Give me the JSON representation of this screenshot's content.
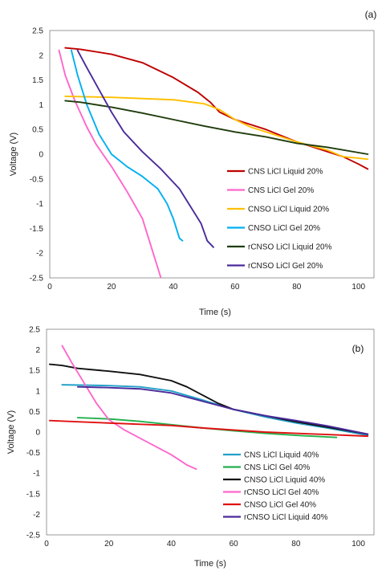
{
  "chart_data": [
    {
      "type": "line",
      "panel_label": "(a)",
      "xlabel": "Time (s)",
      "ylabel": "Voltage (V)",
      "xlim": [
        0,
        105
      ],
      "ylim": [
        -2.5,
        2.5
      ],
      "x_ticks": [
        "0",
        "20",
        "40",
        "60",
        "80",
        "100"
      ],
      "y_ticks": [
        "2.5",
        "2",
        "1.5",
        "1",
        "0.5",
        "0",
        "-0.5",
        "-1",
        "-1.5",
        "-2",
        "-2.5"
      ],
      "grid": false,
      "legend_position": "bottom-right",
      "series": [
        {
          "name": "CNS LiCl Liquid 20%",
          "color": "#c00000",
          "points": [
            [
              5,
              2.15
            ],
            [
              10,
              2.12
            ],
            [
              20,
              2.02
            ],
            [
              30,
              1.85
            ],
            [
              40,
              1.55
            ],
            [
              48,
              1.25
            ],
            [
              52,
              1.05
            ],
            [
              55,
              0.85
            ],
            [
              60,
              0.7
            ],
            [
              70,
              0.5
            ],
            [
              80,
              0.25
            ],
            [
              90,
              0.05
            ],
            [
              95,
              -0.05
            ],
            [
              100,
              -0.2
            ],
            [
              103,
              -0.3
            ]
          ]
        },
        {
          "name": "CNS LiCl Gel 20%",
          "color": "#ff66cc",
          "points": [
            [
              3,
              2.1
            ],
            [
              5,
              1.6
            ],
            [
              8,
              1.1
            ],
            [
              12,
              0.55
            ],
            [
              15,
              0.2
            ],
            [
              20,
              -0.25
            ],
            [
              25,
              -0.75
            ],
            [
              30,
              -1.3
            ],
            [
              33,
              -1.9
            ],
            [
              34,
              -2.1
            ],
            [
              36,
              -2.5
            ]
          ]
        },
        {
          "name": "CNSO LiCl Liquid 20%",
          "color": "#ffc000",
          "points": [
            [
              5,
              1.17
            ],
            [
              20,
              1.15
            ],
            [
              40,
              1.1
            ],
            [
              50,
              1.02
            ],
            [
              55,
              0.9
            ],
            [
              60,
              0.7
            ],
            [
              65,
              0.55
            ],
            [
              70,
              0.45
            ],
            [
              80,
              0.25
            ],
            [
              90,
              0.08
            ],
            [
              95,
              -0.05
            ],
            [
              103,
              -0.1
            ]
          ]
        },
        {
          "name": "CNSO LiCl Gel 20%",
          "color": "#00b0f0",
          "points": [
            [
              7,
              2.1
            ],
            [
              9,
              1.6
            ],
            [
              12,
              1.0
            ],
            [
              16,
              0.4
            ],
            [
              20,
              0.0
            ],
            [
              25,
              -0.25
            ],
            [
              30,
              -0.45
            ],
            [
              35,
              -0.7
            ],
            [
              38,
              -1.0
            ],
            [
              40,
              -1.3
            ],
            [
              42,
              -1.7
            ],
            [
              43,
              -1.75
            ]
          ]
        },
        {
          "name": "rCNSO LiCl Liquid 20%",
          "color": "#1f3d0c",
          "points": [
            [
              5,
              1.08
            ],
            [
              10,
              1.05
            ],
            [
              20,
              0.95
            ],
            [
              30,
              0.83
            ],
            [
              40,
              0.7
            ],
            [
              50,
              0.57
            ],
            [
              60,
              0.45
            ],
            [
              70,
              0.35
            ],
            [
              80,
              0.22
            ],
            [
              90,
              0.14
            ],
            [
              103,
              0.0
            ]
          ]
        },
        {
          "name": "rCNSO LiCl Gel 20%",
          "color": "#4b2a9a",
          "points": [
            [
              9,
              2.1
            ],
            [
              12,
              1.75
            ],
            [
              16,
              1.3
            ],
            [
              20,
              0.85
            ],
            [
              24,
              0.45
            ],
            [
              30,
              0.05
            ],
            [
              36,
              -0.3
            ],
            [
              42,
              -0.7
            ],
            [
              46,
              -1.1
            ],
            [
              49,
              -1.4
            ],
            [
              51,
              -1.75
            ],
            [
              53,
              -1.88
            ]
          ]
        }
      ]
    },
    {
      "type": "line",
      "panel_label": "(b)",
      "xlabel": "Time (s)",
      "ylabel": "Voltage (V)",
      "xlim": [
        0,
        105
      ],
      "ylim": [
        -2.5,
        2.5
      ],
      "x_ticks": [
        "0",
        "20",
        "40",
        "60",
        "80",
        "100"
      ],
      "y_ticks": [
        "2.5",
        "2",
        "1.5",
        "1",
        "0.5",
        "0",
        "-0.5",
        "-1",
        "-1.5",
        "-2",
        "-2.5"
      ],
      "grid": false,
      "legend_position": "bottom-right",
      "series": [
        {
          "name": "CNS LiCl Liquid 40%",
          "color": "#23a0c8",
          "points": [
            [
              5,
              1.15
            ],
            [
              20,
              1.13
            ],
            [
              30,
              1.1
            ],
            [
              40,
              1.0
            ],
            [
              50,
              0.78
            ],
            [
              60,
              0.55
            ],
            [
              70,
              0.37
            ],
            [
              80,
              0.22
            ],
            [
              90,
              0.1
            ],
            [
              103,
              -0.08
            ]
          ]
        },
        {
          "name": "CNS LiCl Gel 40%",
          "color": "#22b14c",
          "points": [
            [
              10,
              0.35
            ],
            [
              20,
              0.32
            ],
            [
              30,
              0.26
            ],
            [
              40,
              0.18
            ],
            [
              50,
              0.1
            ],
            [
              60,
              0.03
            ],
            [
              70,
              -0.03
            ],
            [
              80,
              -0.08
            ],
            [
              93,
              -0.13
            ]
          ]
        },
        {
          "name": "CNSO LiCl Liquid 40%",
          "color": "#111111",
          "points": [
            [
              1,
              1.65
            ],
            [
              5,
              1.62
            ],
            [
              10,
              1.55
            ],
            [
              20,
              1.48
            ],
            [
              30,
              1.4
            ],
            [
              40,
              1.25
            ],
            [
              45,
              1.1
            ],
            [
              50,
              0.9
            ],
            [
              55,
              0.7
            ],
            [
              60,
              0.55
            ],
            [
              70,
              0.4
            ],
            [
              80,
              0.25
            ],
            [
              90,
              0.12
            ],
            [
              103,
              -0.05
            ]
          ]
        },
        {
          "name": "rCNSO LiCl Gel 40%",
          "color": "#ff66cc",
          "points": [
            [
              5,
              2.1
            ],
            [
              8,
              1.7
            ],
            [
              12,
              1.2
            ],
            [
              16,
              0.7
            ],
            [
              20,
              0.3
            ],
            [
              25,
              0.05
            ],
            [
              30,
              -0.15
            ],
            [
              35,
              -0.35
            ],
            [
              40,
              -0.55
            ],
            [
              45,
              -0.8
            ],
            [
              48,
              -0.9
            ]
          ]
        },
        {
          "name": "CNSO LiCl Gel 40%",
          "color": "#e01010",
          "points": [
            [
              1,
              0.28
            ],
            [
              10,
              0.25
            ],
            [
              20,
              0.22
            ],
            [
              30,
              0.19
            ],
            [
              40,
              0.16
            ],
            [
              50,
              0.1
            ],
            [
              60,
              0.05
            ],
            [
              70,
              0.0
            ],
            [
              80,
              -0.03
            ],
            [
              90,
              -0.06
            ],
            [
              103,
              -0.1
            ]
          ]
        },
        {
          "name": "rCNSO LiCl Liquid 40%",
          "color": "#4b2a9a",
          "points": [
            [
              10,
              1.1
            ],
            [
              20,
              1.08
            ],
            [
              30,
              1.05
            ],
            [
              40,
              0.95
            ],
            [
              50,
              0.75
            ],
            [
              60,
              0.55
            ],
            [
              70,
              0.4
            ],
            [
              80,
              0.28
            ],
            [
              90,
              0.15
            ],
            [
              103,
              -0.05
            ]
          ]
        }
      ]
    }
  ]
}
